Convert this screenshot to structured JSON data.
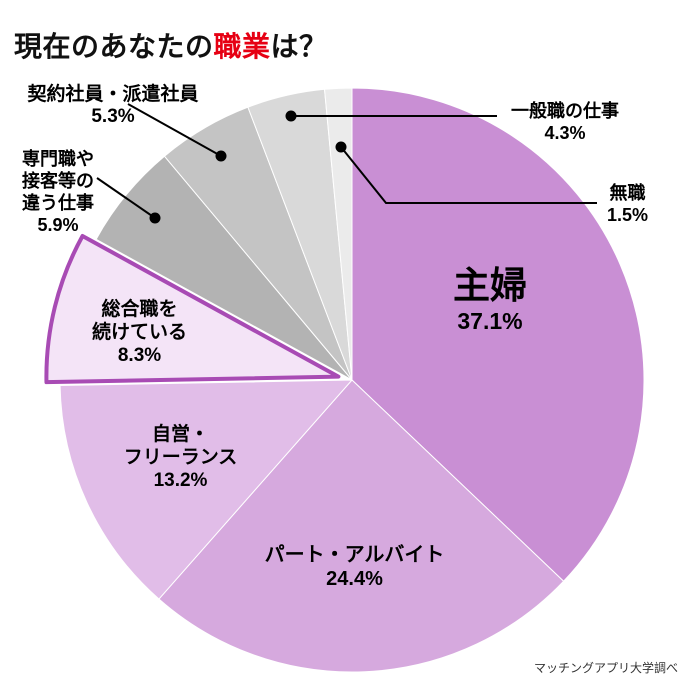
{
  "title": {
    "pre": "現在のあなたの",
    "highlight": "職業",
    "post": "は？",
    "highlight_color": "#e60013"
  },
  "source": "マッチングアプリ大学調べ",
  "chart_data": {
    "type": "pie",
    "title": "現在のあなたの職業は？",
    "direction": "clockwise",
    "start_angle_deg": 0,
    "unit": "%",
    "legend_position": "none",
    "slices": [
      {
        "label": "主婦",
        "value": 37.1,
        "pct_label": "37.1%",
        "lines": [
          "主婦"
        ],
        "color": "#c98fd4"
      },
      {
        "label": "パート・アルバイト",
        "value": 24.4,
        "pct_label": "24.4%",
        "lines": [
          "パート・アルバイト"
        ],
        "color": "#d6a9de"
      },
      {
        "label": "自営・フリーランス",
        "value": 13.2,
        "pct_label": "13.2%",
        "lines": [
          "自営・",
          "フリーランス"
        ],
        "color": "#e1bde8"
      },
      {
        "label": "総合職を続けている",
        "value": 8.3,
        "pct_label": "8.3%",
        "lines": [
          "総合職を",
          "続けている"
        ],
        "color": "#f4e4f7",
        "exploded": true,
        "stroke_color": "#a84bb4"
      },
      {
        "label": "専門職や接客等の違う仕事",
        "value": 5.9,
        "pct_label": "5.9%",
        "lines": [
          "専門職や",
          "接客等の",
          "違う仕事"
        ],
        "color": "#b3b3b3"
      },
      {
        "label": "契約社員・派遣社員",
        "value": 5.3,
        "pct_label": "5.3%",
        "lines": [
          "契約社員・派遣社員"
        ],
        "color": "#c4c4c4"
      },
      {
        "label": "一般職の仕事",
        "value": 4.3,
        "pct_label": "4.3%",
        "lines": [
          "一般職の仕事"
        ],
        "color": "#d9d9d9"
      },
      {
        "label": "無職",
        "value": 1.5,
        "pct_label": "1.5%",
        "lines": [
          "無職"
        ],
        "color": "#ebebeb"
      }
    ]
  }
}
